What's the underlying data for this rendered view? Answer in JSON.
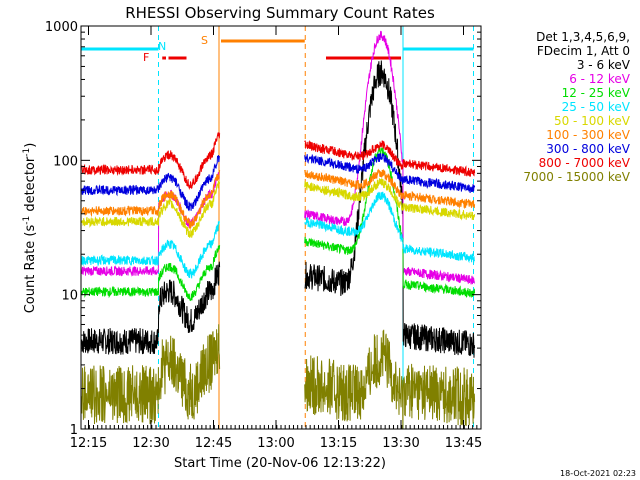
{
  "chart_data": {
    "type": "line",
    "title": "RHESSI Observing Summary Count Rates",
    "xlabel": "Start Time (20-Nov-06 12:13:22)",
    "ylabel": "Count Rate (s",
    "ylabel_sup": "-1",
    "ylabel_tail": " detector",
    "ylabel_close": ")",
    "y_scale": "log",
    "ylim": [
      1,
      1000
    ],
    "xlim_minutes": [
      12.22,
      13.82
    ],
    "x_ticks": [
      {
        "label": "12:15",
        "value": 12.25
      },
      {
        "label": "12:30",
        "value": 12.5
      },
      {
        "label": "12:45",
        "value": 12.75
      },
      {
        "label": "13:00",
        "value": 13.0
      },
      {
        "label": "13:15",
        "value": 13.25
      },
      {
        "label": "13:30",
        "value": 13.5
      },
      {
        "label": "13:45",
        "value": 13.75
      }
    ],
    "y_ticks": [
      {
        "label": "1",
        "value": 1
      },
      {
        "label": "10",
        "value": 10
      },
      {
        "label": "100",
        "value": 100
      },
      {
        "label": "1000",
        "value": 1000
      }
    ],
    "legend_header": [
      "Det 1,3,4,5,6,9,",
      "FDecim 1, Att 0"
    ],
    "series": [
      {
        "name": "3 - 6 keV",
        "color": "#000000",
        "before": 4.5,
        "mid": 8.5,
        "preflare": 14,
        "peak": 450,
        "after": 5
      },
      {
        "name": "6 - 12 keV",
        "color": "#e600e6",
        "before": 15,
        "mid": 45,
        "preflare": 40,
        "peak": 850,
        "after": 15
      },
      {
        "name": "12 - 25 keV",
        "color": "#00dd00",
        "before": 10.5,
        "mid": 13,
        "preflare": 25,
        "peak": 120,
        "after": 12
      },
      {
        "name": "25 - 50 keV",
        "color": "#00e5ff",
        "before": 18,
        "mid": 19,
        "preflare": 35,
        "peak": 55,
        "after": 22
      },
      {
        "name": "50 - 100 keV",
        "color": "#d8d800",
        "before": 35,
        "mid": 38,
        "preflare": 65,
        "peak": 68,
        "after": 45
      },
      {
        "name": "100 - 300 keV",
        "color": "#ff8000",
        "before": 42,
        "mid": 45,
        "preflare": 80,
        "peak": 80,
        "after": 55
      },
      {
        "name": "300 - 800 keV",
        "color": "#0000dd",
        "before": 60,
        "mid": 60,
        "preflare": 105,
        "peak": 105,
        "after": 72
      },
      {
        "name": "800 - 7000 keV",
        "color": "#ee0000",
        "before": 85,
        "mid": 88,
        "preflare": 130,
        "peak": 130,
        "after": 95
      },
      {
        "name": "7000 - 15000 keV",
        "color": "#808000",
        "before": 1.8,
        "mid": 2.5,
        "preflare": 2.2,
        "peak": 3.5,
        "after": 2
      }
    ],
    "annotations": [
      {
        "label": "N",
        "color": "#00e5ff"
      },
      {
        "label": "F",
        "color": "#ee0000"
      },
      {
        "label": "S",
        "color": "#ff8000"
      }
    ],
    "footer_date": "18-Oct-2021 02:23"
  }
}
